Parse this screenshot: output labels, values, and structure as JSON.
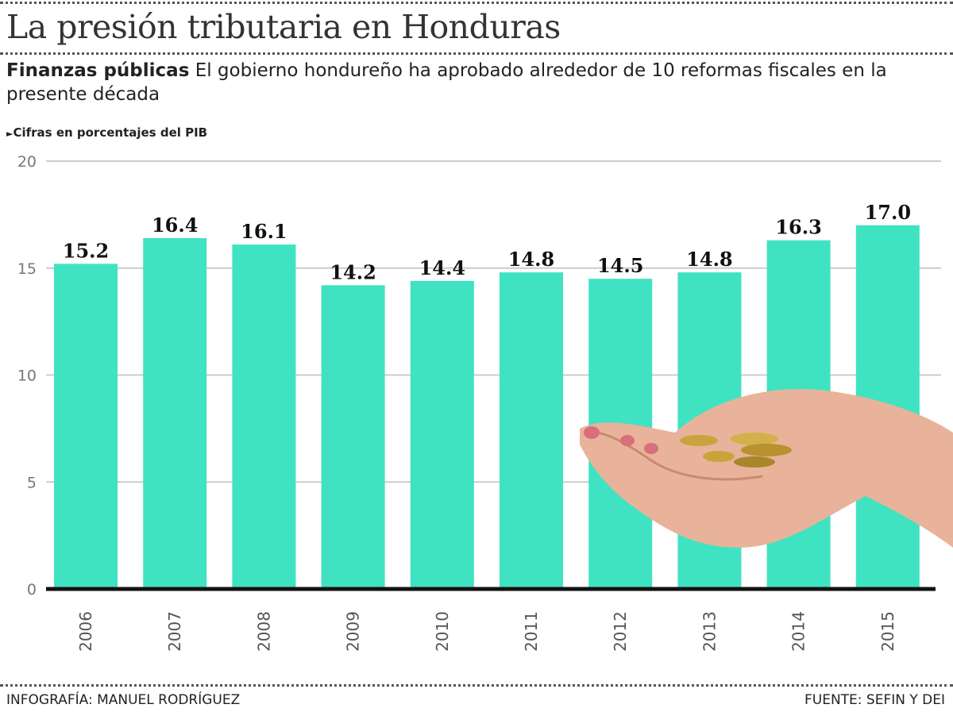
{
  "title": "La presión tributaria en Honduras",
  "subtitle_bold": "Finanzas públicas",
  "subtitle_text": "El gobierno hondureño ha aprobado  alrededor de 10 reformas fiscales en la presente década",
  "note": "Cifras en porcentajes del PIB",
  "footer_left": "INFOGRAFÍA: MANUEL RODRÍGUEZ",
  "footer_right": "FUENTE: SEFIN Y DEI",
  "colors": {
    "bar": "#3fe3c1",
    "axis": "#111111",
    "grid": "#cccccc"
  },
  "chart_data": {
    "type": "bar",
    "title": "La presión tributaria en Honduras",
    "ylabel": "Cifras en porcentajes del PIB",
    "categories": [
      "2006",
      "2007",
      "2008",
      "2009",
      "2010",
      "2011",
      "2012",
      "2013",
      "2014",
      "2015"
    ],
    "values": [
      15.2,
      16.4,
      16.1,
      14.2,
      14.4,
      14.8,
      14.5,
      14.8,
      16.3,
      17.0
    ],
    "value_labels": [
      "15.2",
      "16.4",
      "16.1",
      "14.2",
      "14.4",
      "14.8",
      "14.5",
      "14.8",
      "16.3",
      "17.0"
    ],
    "ylim": [
      0,
      20
    ],
    "yticks": [
      "0",
      "5",
      "10",
      "15",
      "20"
    ],
    "grid": true
  }
}
